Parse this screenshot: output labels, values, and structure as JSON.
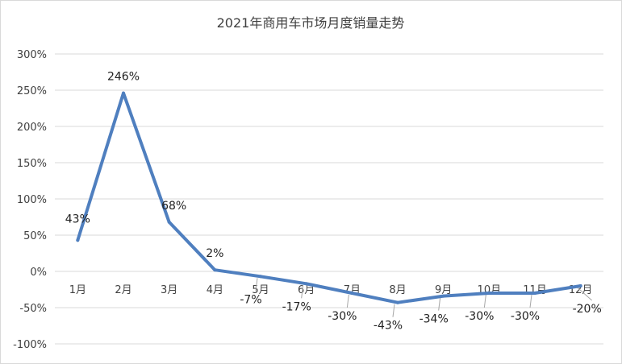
{
  "chart_data": {
    "type": "line",
    "title": "2021年商用车市场月度销量走势",
    "xlabel": "",
    "ylabel": "",
    "categories": [
      "1月",
      "2月",
      "3月",
      "4月",
      "5月",
      "6月",
      "7月",
      "8月",
      "9月",
      "10月",
      "11月",
      "12月"
    ],
    "series": [
      {
        "values": [
          43,
          246,
          68,
          2,
          -7,
          -17,
          -30,
          -43,
          -34,
          -30,
          -30,
          -20
        ]
      }
    ],
    "data_labels": [
      "43%",
      "246%",
      "68%",
      "2%",
      "-7%",
      "-17%",
      "-30%",
      "-43%",
      "-34%",
      "-30%",
      "-30%",
      "-20%"
    ],
    "y_ticks": [
      300,
      250,
      200,
      150,
      100,
      50,
      0,
      -50,
      -100
    ],
    "y_tick_labels": [
      "300%",
      "250%",
      "200%",
      "150%",
      "100%",
      "50%",
      "0%",
      "-50%",
      "-100%"
    ],
    "ylim": [
      -100,
      300
    ],
    "grid": true,
    "legend": "none",
    "colors": {
      "line": "#4f7fbf",
      "grid": "#d9d9d9",
      "text": "#404040",
      "leader": "#a6a6a6"
    }
  }
}
